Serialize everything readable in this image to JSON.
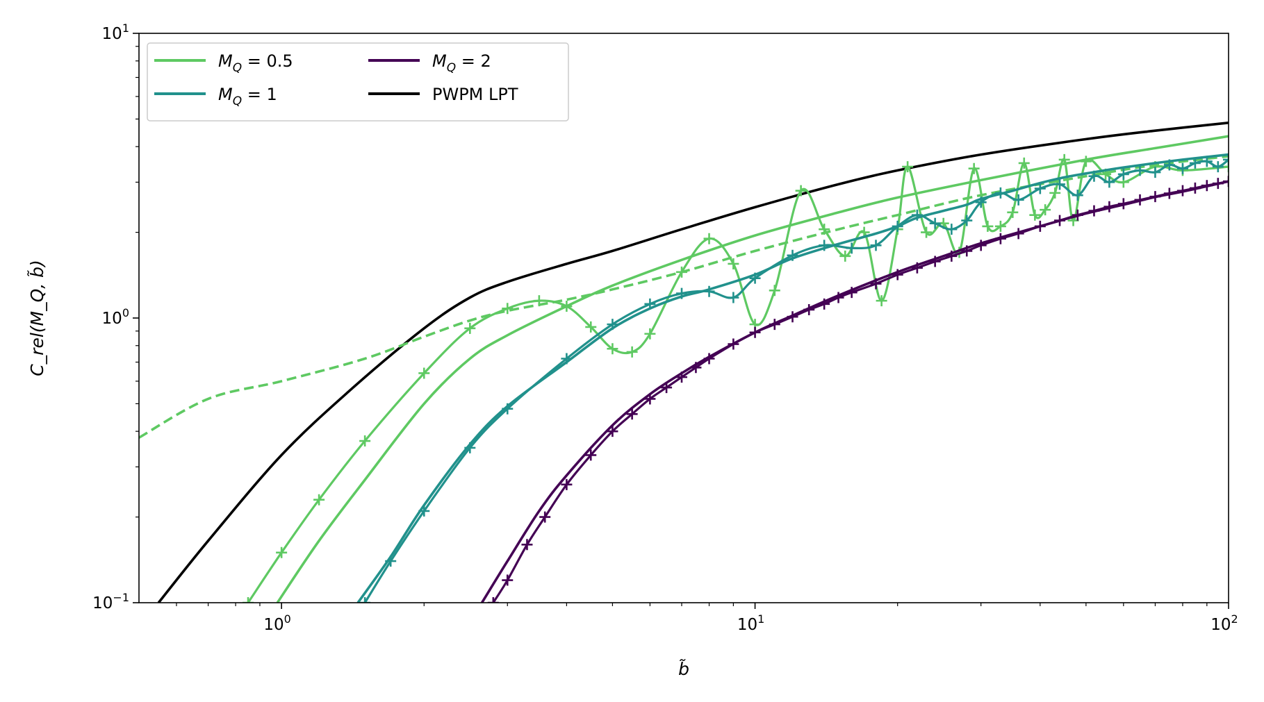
{
  "chart_data": {
    "type": "line",
    "xscale": "log",
    "yscale": "log",
    "xlim": [
      0.5,
      100
    ],
    "ylim": [
      0.1,
      10
    ],
    "xlabel": "b̃",
    "ylabel": "C_rel(M_Q, b̃)",
    "x_ticks": [
      {
        "value": 1,
        "base": "10",
        "exp": "0"
      },
      {
        "value": 10,
        "base": "10",
        "exp": "1"
      },
      {
        "value": 100,
        "base": "10",
        "exp": "2"
      }
    ],
    "y_ticks": [
      {
        "value": 0.1,
        "base": "10",
        "exp": "−1"
      },
      {
        "value": 1,
        "base": "10",
        "exp": "0"
      },
      {
        "value": 10,
        "base": "10",
        "exp": "1"
      }
    ],
    "legend": {
      "placement": "top-left",
      "entries": [
        {
          "prefix": "M",
          "sub": "Q",
          "text": " = 0.5",
          "color": "#5ec962"
        },
        {
          "prefix": "M",
          "sub": "Q",
          "text": " = 1",
          "color": "#21918c"
        },
        {
          "prefix": "M",
          "sub": "Q",
          "text": " = 2",
          "color": "#440154"
        },
        {
          "prefix": "",
          "sub": "",
          "text": "PWPM LPT",
          "color": "#000000"
        }
      ]
    },
    "series": [
      {
        "name": "PWPM LPT",
        "color": "#000000",
        "style": "solid",
        "x": [
          0.55,
          0.7,
          1,
          1.4,
          2,
          2.5,
          3,
          4,
          5,
          7,
          10,
          15,
          20,
          30,
          50,
          70,
          100
        ],
        "y": [
          0.1,
          0.165,
          0.33,
          0.56,
          0.92,
          1.18,
          1.34,
          1.55,
          1.72,
          2.05,
          2.45,
          2.95,
          3.3,
          3.75,
          4.25,
          4.55,
          4.85
        ]
      },
      {
        "name": "M_Q = 0.5 (solid)",
        "color": "#5ec962",
        "style": "solid",
        "x": [
          0.98,
          1.2,
          1.5,
          2,
          2.5,
          3,
          4,
          5,
          7,
          10,
          15,
          20,
          30,
          50,
          70,
          100
        ],
        "y": [
          0.1,
          0.165,
          0.27,
          0.5,
          0.72,
          0.87,
          1.1,
          1.3,
          1.6,
          1.95,
          2.35,
          2.65,
          3.05,
          3.6,
          3.95,
          4.35
        ]
      },
      {
        "name": "M_Q = 0.5 (dashed)",
        "color": "#5ec962",
        "style": "dashed",
        "x": [
          0.5,
          0.7,
          1,
          1.5,
          2,
          2.5,
          3,
          4,
          5,
          7,
          10,
          15,
          20,
          30,
          50,
          70,
          100
        ],
        "y": [
          0.38,
          0.52,
          0.6,
          0.72,
          0.86,
          0.98,
          1.06,
          1.16,
          1.26,
          1.45,
          1.72,
          2.05,
          2.3,
          2.7,
          3.15,
          3.45,
          3.7
        ]
      },
      {
        "name": "M_Q = 0.5 (markers)",
        "color": "#5ec962",
        "style": "markers",
        "x": [
          0.85,
          1,
          1.2,
          1.5,
          2,
          2.5,
          3,
          3.5,
          4,
          4.5,
          5,
          5.5,
          6,
          7,
          8,
          9,
          10,
          11,
          12.5,
          14,
          15.5,
          17,
          18.5,
          20,
          21,
          23,
          25,
          27,
          29,
          31,
          33,
          35,
          37,
          39,
          41,
          43,
          45,
          47,
          50,
          55,
          60,
          70,
          80,
          100
        ],
        "y": [
          0.1,
          0.15,
          0.23,
          0.37,
          0.64,
          0.92,
          1.08,
          1.15,
          1.1,
          0.93,
          0.78,
          0.76,
          0.88,
          1.45,
          1.9,
          1.55,
          0.95,
          1.25,
          2.8,
          2.05,
          1.65,
          2.0,
          1.15,
          2.05,
          3.4,
          2.0,
          2.15,
          1.7,
          3.35,
          2.1,
          2.1,
          2.35,
          3.5,
          2.3,
          2.4,
          2.75,
          3.6,
          2.2,
          3.55,
          3.2,
          3.0,
          3.4,
          3.3,
          3.4
        ]
      },
      {
        "name": "M_Q = 1 (solid)",
        "color": "#21918c",
        "style": "solid",
        "x": [
          1.45,
          1.7,
          2,
          2.5,
          3,
          4,
          5,
          6,
          7,
          8,
          10,
          12,
          15,
          18,
          20,
          22,
          25,
          28,
          30,
          35,
          40,
          45,
          50,
          60,
          70,
          80,
          100
        ],
        "y": [
          0.1,
          0.145,
          0.22,
          0.36,
          0.49,
          0.7,
          0.92,
          1.08,
          1.19,
          1.26,
          1.42,
          1.62,
          1.82,
          1.98,
          2.1,
          2.25,
          2.38,
          2.5,
          2.62,
          2.8,
          2.98,
          3.12,
          3.22,
          3.38,
          3.5,
          3.6,
          3.75
        ]
      },
      {
        "name": "M_Q = 1 (markers)",
        "color": "#21918c",
        "style": "markers",
        "x": [
          1.5,
          1.7,
          2,
          2.5,
          3,
          4,
          5,
          6,
          7,
          8,
          9,
          10,
          12,
          14,
          16,
          18,
          20,
          22,
          24,
          26,
          28,
          30,
          33,
          36,
          40,
          44,
          48,
          52,
          56,
          60,
          65,
          70,
          75,
          80,
          85,
          90,
          95,
          100
        ],
        "y": [
          0.1,
          0.14,
          0.21,
          0.35,
          0.48,
          0.72,
          0.95,
          1.12,
          1.22,
          1.24,
          1.18,
          1.38,
          1.66,
          1.8,
          1.76,
          1.8,
          2.1,
          2.3,
          2.15,
          2.05,
          2.2,
          2.55,
          2.75,
          2.6,
          2.85,
          2.95,
          2.7,
          3.15,
          3.0,
          3.2,
          3.3,
          3.25,
          3.45,
          3.35,
          3.5,
          3.55,
          3.4,
          3.6
        ]
      },
      {
        "name": "M_Q = 2 (solid)",
        "color": "#440154",
        "style": "solid",
        "x": [
          2.65,
          3,
          3.5,
          4,
          5,
          6,
          7,
          8,
          10,
          12,
          15,
          20,
          25,
          30,
          40,
          50,
          60,
          70,
          80,
          100
        ],
        "y": [
          0.1,
          0.14,
          0.21,
          0.28,
          0.42,
          0.54,
          0.64,
          0.73,
          0.89,
          1.02,
          1.2,
          1.45,
          1.65,
          1.83,
          2.1,
          2.33,
          2.5,
          2.66,
          2.78,
          3.02
        ]
      },
      {
        "name": "M_Q = 2 (markers)",
        "color": "#440154",
        "style": "markers",
        "x": [
          2.8,
          3,
          3.3,
          3.6,
          4,
          4.5,
          5,
          5.5,
          6,
          6.5,
          7,
          7.5,
          8,
          9,
          10,
          11,
          12,
          13,
          14,
          15,
          16,
          18,
          20,
          22,
          24,
          26,
          28,
          30,
          33,
          36,
          40,
          44,
          48,
          52,
          56,
          60,
          65,
          70,
          75,
          80,
          85,
          90,
          95,
          100
        ],
        "y": [
          0.1,
          0.12,
          0.16,
          0.2,
          0.26,
          0.33,
          0.4,
          0.46,
          0.52,
          0.57,
          0.62,
          0.67,
          0.72,
          0.81,
          0.89,
          0.95,
          1.01,
          1.07,
          1.12,
          1.18,
          1.23,
          1.32,
          1.42,
          1.5,
          1.58,
          1.65,
          1.72,
          1.8,
          1.9,
          1.98,
          2.1,
          2.2,
          2.3,
          2.38,
          2.46,
          2.52,
          2.6,
          2.67,
          2.74,
          2.8,
          2.86,
          2.92,
          2.97,
          3.02
        ]
      }
    ]
  }
}
